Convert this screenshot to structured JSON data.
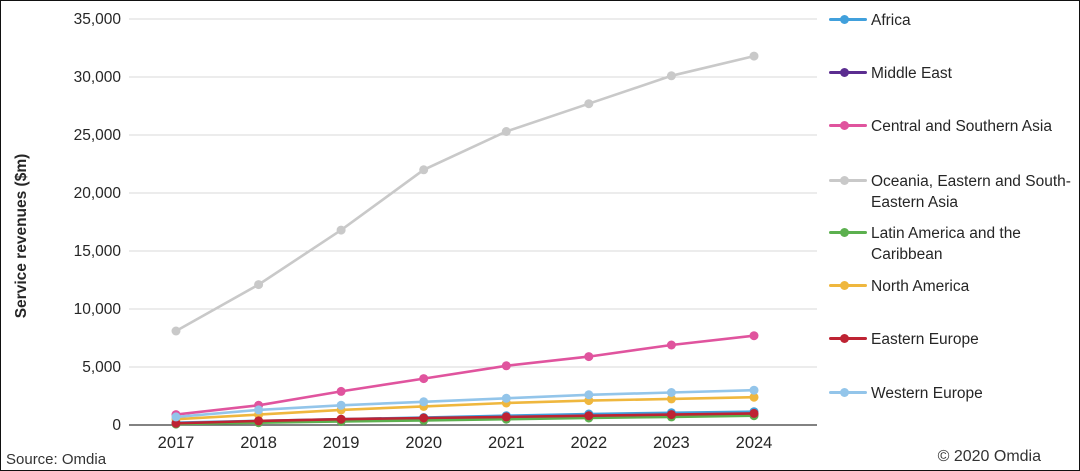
{
  "chart_data": {
    "type": "line",
    "title": "",
    "xlabel": "",
    "ylabel": "Service revenues ($m)",
    "x": [
      "2017",
      "2018",
      "2019",
      "2020",
      "2021",
      "2022",
      "2023",
      "2024"
    ],
    "ylim": [
      0,
      35000
    ],
    "yticks": [
      0,
      5000,
      10000,
      15000,
      20000,
      25000,
      30000,
      35000
    ],
    "ytick_labels": [
      "0",
      "5,000",
      "10,000",
      "15,000",
      "20,000",
      "25,000",
      "30,000",
      "35,000"
    ],
    "grid": true,
    "legend_position": "right",
    "series": [
      {
        "name": "Africa",
        "color": "#41A0DC",
        "values": [
          200,
          350,
          500,
          650,
          800,
          950,
          1050,
          1150
        ]
      },
      {
        "name": "Middle East",
        "color": "#5B2D90",
        "values": [
          100,
          250,
          400,
          500,
          600,
          700,
          800,
          900
        ]
      },
      {
        "name": "Central and Southern Asia",
        "color": "#E0549E",
        "values": [
          900,
          1700,
          2900,
          4000,
          5100,
          5900,
          6900,
          7700
        ]
      },
      {
        "name": "Oceania, Eastern and South-Eastern Asia",
        "color": "#C9C9C9",
        "values": [
          8100,
          12100,
          16800,
          22000,
          25300,
          27700,
          30100,
          31800
        ]
      },
      {
        "name": "Latin America and the Caribbean",
        "color": "#5CB04F",
        "values": [
          80,
          200,
          300,
          400,
          500,
          600,
          700,
          800
        ]
      },
      {
        "name": "North America",
        "color": "#EFB73E",
        "values": [
          500,
          900,
          1300,
          1600,
          1900,
          2100,
          2250,
          2400
        ]
      },
      {
        "name": "Eastern Europe",
        "color": "#BE2333",
        "values": [
          150,
          350,
          500,
          600,
          700,
          800,
          900,
          1000
        ]
      },
      {
        "name": "Western Europe",
        "color": "#93C5EA",
        "values": [
          700,
          1300,
          1700,
          2000,
          2300,
          2600,
          2800,
          3000
        ]
      }
    ]
  },
  "footer": {
    "source": "Source: Omdia",
    "copyright": "© 2020 Omdia"
  }
}
